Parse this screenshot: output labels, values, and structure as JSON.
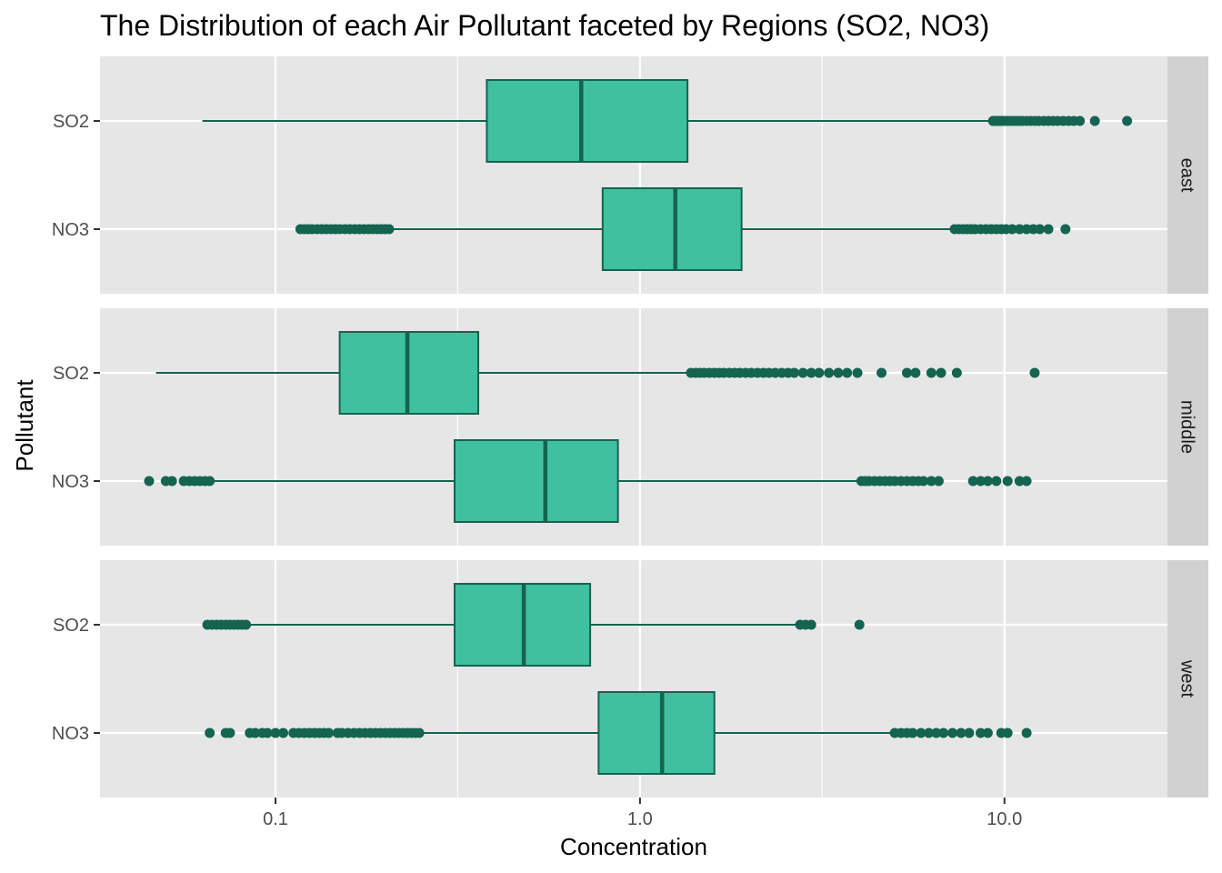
{
  "chart_data": {
    "type": "boxplot",
    "title": "The Distribution of each Air Pollutant faceted by Regions (SO2, NO3)",
    "xlabel": "Concentration",
    "ylabel": "Pollutant",
    "x_scale": "log10",
    "xlim": [
      0.033,
      28
    ],
    "x_ticks": [
      {
        "value": 0.1,
        "label": "0.1"
      },
      {
        "value": 1.0,
        "label": "1.0"
      },
      {
        "value": 10.0,
        "label": "10.0"
      }
    ],
    "x_minor_ticks": [
      0.316,
      3.16
    ],
    "categories": [
      "SO2",
      "NO3"
    ],
    "colors": {
      "box_fill": "#3fc19f",
      "box_line": "#14644f",
      "outlier": "#14644f",
      "panel_bg": "#e6e6e6",
      "strip_bg": "#d1d1d1",
      "grid": "#ffffff"
    },
    "grid": true,
    "facets": [
      {
        "label": "east",
        "boxes": [
          {
            "category": "SO2",
            "min": 0.063,
            "q1": 0.38,
            "median": 0.69,
            "q3": 1.35,
            "max": 9.2,
            "outliers": [
              9.3,
              9.4,
              9.5,
              9.6,
              9.7,
              9.8,
              9.9,
              10.0,
              10.2,
              10.4,
              10.6,
              10.8,
              11.0,
              11.2,
              11.5,
              11.8,
              12.1,
              12.4,
              12.8,
              13.2,
              13.6,
              14.0,
              14.5,
              15.0,
              15.5,
              16.1,
              17.7,
              21.7
            ]
          },
          {
            "category": "NO3",
            "min": 0.21,
            "q1": 0.79,
            "median": 1.25,
            "q3": 1.9,
            "max": 7.2,
            "outliers": [
              0.117,
              0.12,
              0.123,
              0.126,
              0.13,
              0.134,
              0.138,
              0.142,
              0.146,
              0.15,
              0.155,
              0.16,
              0.165,
              0.17,
              0.175,
              0.18,
              0.185,
              0.19,
              0.195,
              0.2,
              0.205,
              7.3,
              7.5,
              7.7,
              7.9,
              8.1,
              8.3,
              8.6,
              8.9,
              9.2,
              9.5,
              9.8,
              10.1,
              10.5,
              11.0,
              11.5,
              12.0,
              12.5,
              13.2,
              14.7
            ]
          }
        ]
      },
      {
        "label": "middle",
        "boxes": [
          {
            "category": "SO2",
            "min": 0.047,
            "q1": 0.15,
            "median": 0.23,
            "q3": 0.36,
            "max": 1.35,
            "outliers": [
              1.38,
              1.42,
              1.46,
              1.5,
              1.55,
              1.6,
              1.65,
              1.7,
              1.76,
              1.82,
              1.88,
              1.95,
              2.02,
              2.1,
              2.18,
              2.26,
              2.35,
              2.45,
              2.55,
              2.65,
              2.8,
              2.95,
              3.1,
              3.3,
              3.5,
              3.7,
              3.95,
              4.6,
              5.4,
              5.7,
              6.3,
              6.7,
              7.4,
              12.1
            ]
          },
          {
            "category": "NO3",
            "min": 0.067,
            "q1": 0.31,
            "median": 0.55,
            "q3": 0.87,
            "max": 4.0,
            "outliers": [
              0.045,
              0.05,
              0.052,
              0.056,
              0.058,
              0.06,
              0.062,
              0.064,
              0.066,
              4.05,
              4.15,
              4.25,
              4.4,
              4.55,
              4.7,
              4.85,
              5.0,
              5.2,
              5.4,
              5.6,
              5.8,
              6.0,
              6.3,
              6.6,
              8.2,
              8.6,
              9.0,
              9.5,
              10.2,
              11.0,
              11.5
            ]
          }
        ]
      },
      {
        "label": "west",
        "boxes": [
          {
            "category": "SO2",
            "min": 0.085,
            "q1": 0.31,
            "median": 0.48,
            "q3": 0.73,
            "max": 2.7,
            "outliers": [
              0.065,
              0.067,
              0.069,
              0.071,
              0.073,
              0.075,
              0.077,
              0.079,
              0.081,
              0.083,
              2.75,
              2.85,
              2.95,
              4.0
            ]
          },
          {
            "category": "NO3",
            "min": 0.25,
            "q1": 0.77,
            "median": 1.15,
            "q3": 1.6,
            "max": 4.9,
            "outliers": [
              0.066,
              0.073,
              0.075,
              0.085,
              0.088,
              0.092,
              0.095,
              0.1,
              0.105,
              0.112,
              0.116,
              0.12,
              0.124,
              0.128,
              0.132,
              0.136,
              0.14,
              0.148,
              0.152,
              0.158,
              0.164,
              0.17,
              0.176,
              0.182,
              0.188,
              0.194,
              0.2,
              0.206,
              0.212,
              0.218,
              0.224,
              0.23,
              0.236,
              0.242,
              0.248,
              5.0,
              5.2,
              5.4,
              5.6,
              5.9,
              6.2,
              6.5,
              6.8,
              7.2,
              7.6,
              8.0,
              8.6,
              9.0,
              9.8,
              10.2,
              11.5
            ]
          }
        ]
      }
    ]
  }
}
